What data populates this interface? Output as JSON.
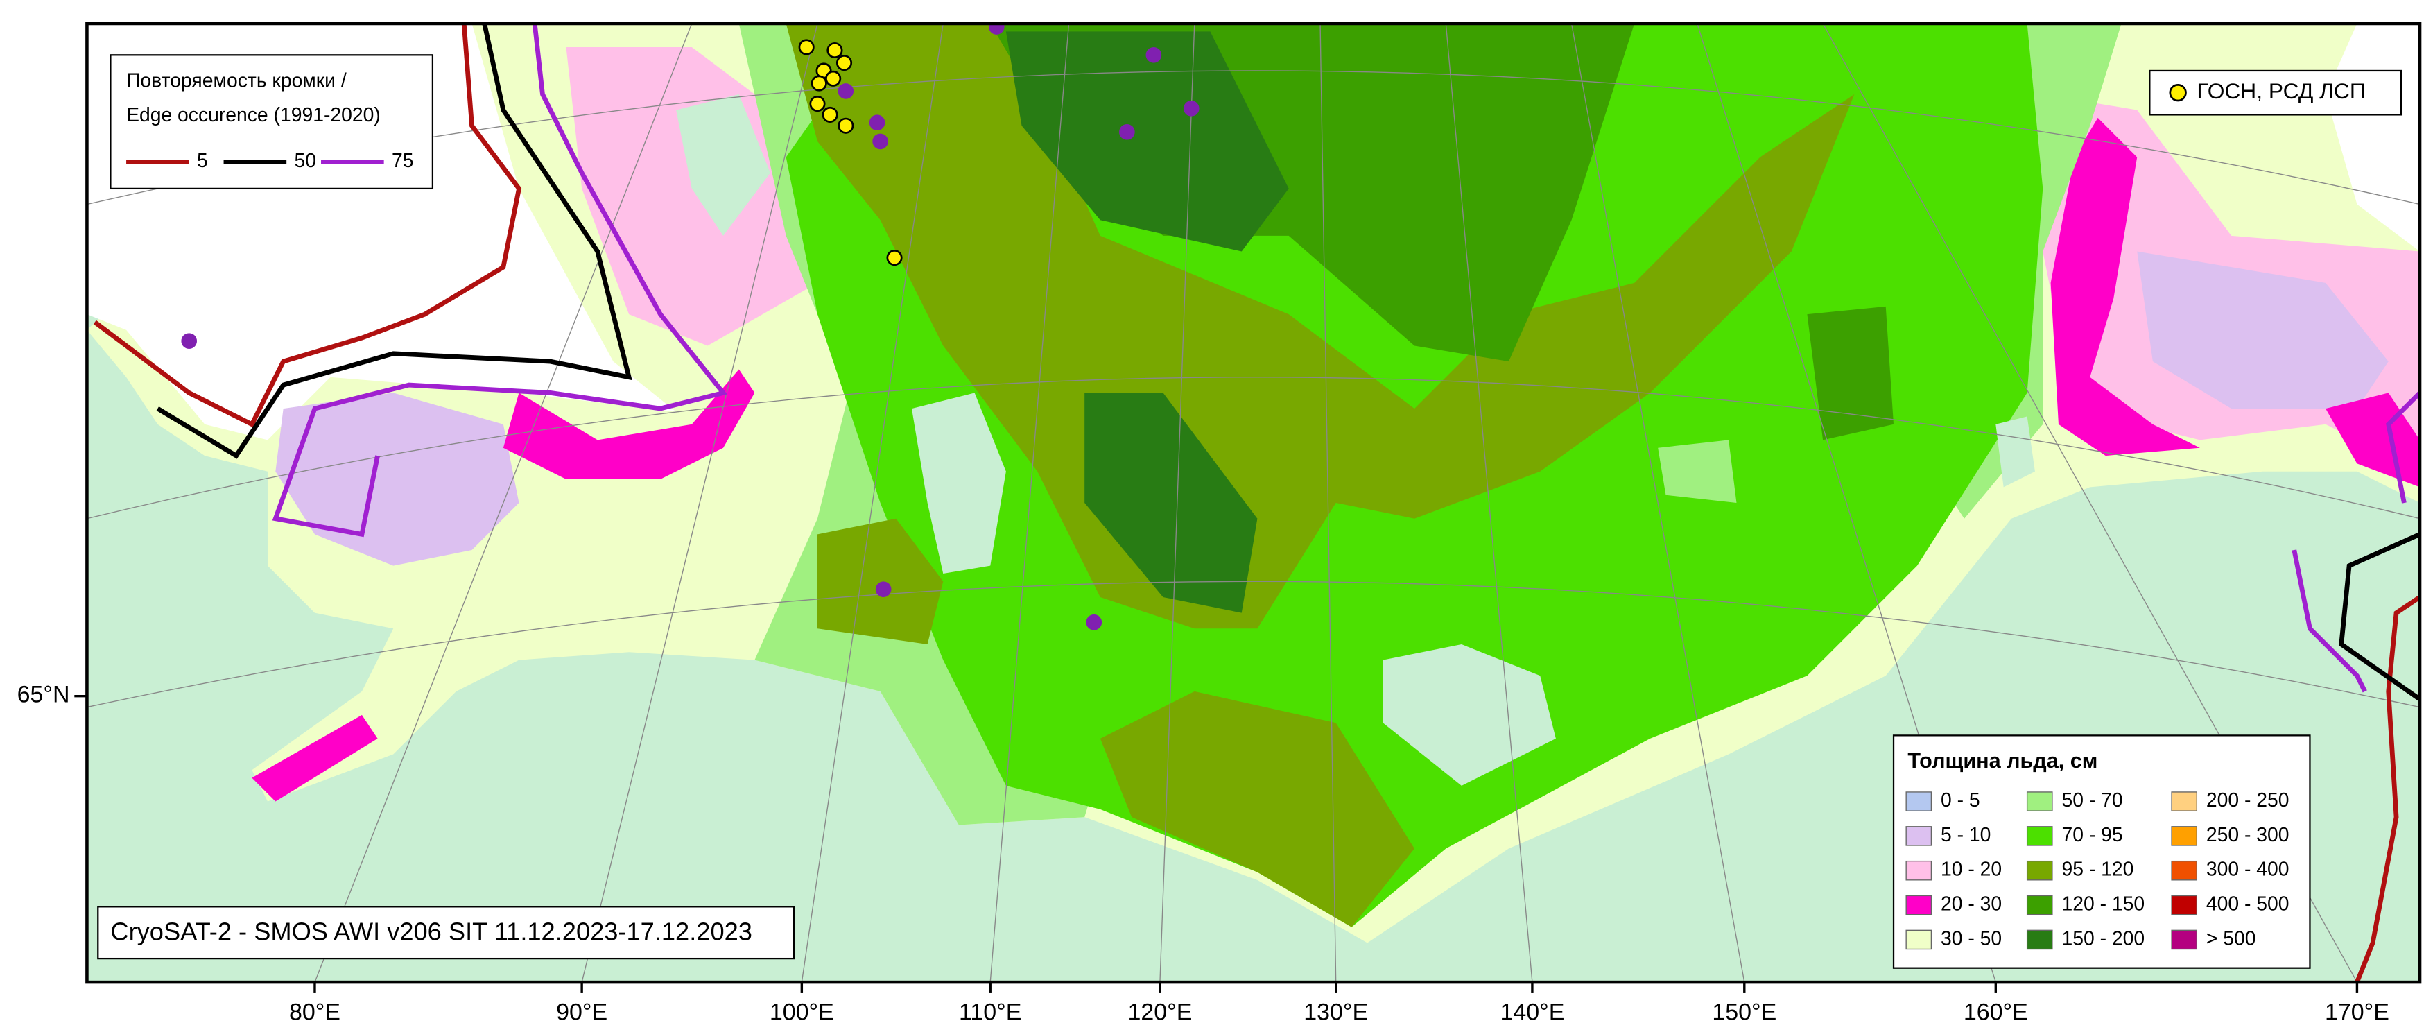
{
  "edge_legend": {
    "title_lines": [
      "Повторяемость кромки /",
      "Edge occurence (1991-2020)"
    ],
    "items": [
      {
        "label": "5",
        "color": "#b01010"
      },
      {
        "label": "50",
        "color": "#000000"
      },
      {
        "label": "75",
        "color": "#a020d0"
      }
    ]
  },
  "points_legend": {
    "label": "ГОСН, РСД ЛСП",
    "color": "#ffee00"
  },
  "thickness_legend": {
    "title": "Толщина льда, см",
    "items": [
      {
        "label": "0 - 5",
        "color": "#b4c8f0"
      },
      {
        "label": "5 - 10",
        "color": "#dcc0f0"
      },
      {
        "label": "10 - 20",
        "color": "#ffc0e8"
      },
      {
        "label": "20 - 30",
        "color": "#ff00c8"
      },
      {
        "label": "30 - 50",
        "color": "#f0ffc8"
      },
      {
        "label": "50 - 70",
        "color": "#a0f080"
      },
      {
        "label": "70 - 95",
        "color": "#4ce000"
      },
      {
        "label": "95 - 120",
        "color": "#78a800"
      },
      {
        "label": "120 - 150",
        "color": "#3ca000"
      },
      {
        "label": "150 - 200",
        "color": "#287c14"
      },
      {
        "label": "200 - 250",
        "color": "#ffd080"
      },
      {
        "label": "250 - 300",
        "color": "#ffa000"
      },
      {
        "label": "300 - 400",
        "color": "#f05000"
      },
      {
        "label": "400 - 500",
        "color": "#c00000"
      },
      {
        "label": "> 500",
        "color": "#b40080"
      }
    ]
  },
  "caption": "CryoSAT-2 - SMOS AWI v206 SIT 11.12.2023-17.12.2023",
  "lon_labels": [
    "80°E",
    "90°E",
    "100°E",
    "110°E",
    "120°E",
    "130°E",
    "140°E",
    "150°E",
    "160°E",
    "170°E"
  ],
  "lat_labels": [
    "65°N"
  ]
}
